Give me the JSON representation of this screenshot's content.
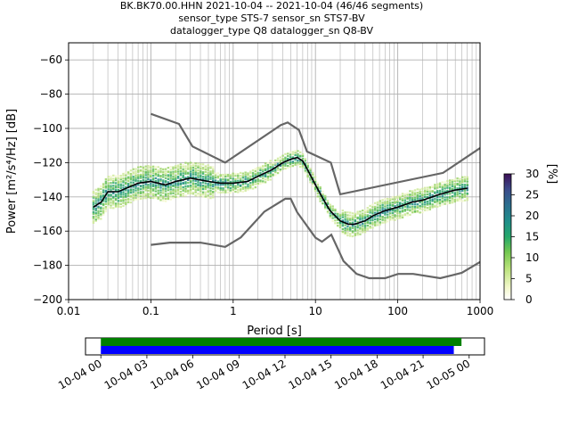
{
  "title_lines": [
    "BK.BK70.00.HHN   2021-10-04 -- 2021-10-04  (46/46 segments)",
    "sensor_type STS-7 sensor_sn STS7-BV",
    "datalogger_type Q8 datalogger_sn Q8-BV"
  ],
  "colorbar": {
    "label": "[%]",
    "ticks": [
      "0",
      "5",
      "10",
      "15",
      "20",
      "25",
      "30"
    ],
    "range": [
      0,
      30
    ]
  },
  "chart_data": [
    {
      "type": "line",
      "x_scale": "log",
      "xlabel": "Period [s]",
      "ylabel": "Power [m²/s⁴/Hz] [dB]",
      "xlim": [
        0.01,
        1000
      ],
      "ylim": [
        -200,
        -50
      ],
      "x_ticks": [
        "0.01",
        "0.1",
        "1",
        "10",
        "100",
        "1000"
      ],
      "y_ticks": [
        "−200",
        "−180",
        "−160",
        "−140",
        "−120",
        "−100",
        "−80",
        "−60"
      ],
      "grid": true,
      "series": [
        {
          "role": "mode",
          "color": "#000000",
          "x": [
            0.02,
            0.025,
            0.03,
            0.04,
            0.05,
            0.07,
            0.1,
            0.15,
            0.2,
            0.3,
            0.5,
            0.7,
            1,
            1.5,
            2,
            3,
            4,
            5,
            6,
            7,
            8,
            10,
            12,
            15,
            20,
            25,
            30,
            40,
            50,
            70,
            100,
            150,
            200,
            300,
            500,
            700
          ],
          "y": [
            -146,
            -143,
            -137,
            -137,
            -135,
            -132,
            -131,
            -133,
            -131,
            -129,
            -131,
            -132,
            -132,
            -131,
            -128,
            -124,
            -120,
            -118,
            -117,
            -119,
            -124,
            -133,
            -140,
            -148,
            -154,
            -156,
            -156,
            -154,
            -151,
            -148,
            -146,
            -143,
            -142,
            -139,
            -136,
            -135
          ]
        },
        {
          "role": "NHNM",
          "color": "#666666",
          "x": [
            0.1,
            0.22,
            0.32,
            0.8,
            3.8,
            4.6,
            6.3,
            7.9,
            15.4,
            20,
            354.8,
            1000
          ],
          "y": [
            -91.5,
            -97.4,
            -110.5,
            -120,
            -98,
            -96.5,
            -101,
            -113.5,
            -120,
            -138.5,
            -126,
            -111.5
          ]
        },
        {
          "role": "NLNM",
          "color": "#666666",
          "x": [
            0.1,
            0.17,
            0.4,
            0.8,
            1.24,
            2.4,
            4.3,
            5,
            6,
            10,
            12,
            15.6,
            21.9,
            31.6,
            45,
            70,
            101,
            154,
            328,
            600,
            1000
          ],
          "y": [
            -168,
            -166.7,
            -166.7,
            -169.2,
            -163.7,
            -148.6,
            -141.1,
            -141.1,
            -149,
            -163.8,
            -166.2,
            -162.1,
            -177.5,
            -185,
            -187.5,
            -187.5,
            -185,
            -185,
            -187.5,
            -184.4,
            -178
          ]
        }
      ]
    },
    {
      "type": "timeline",
      "x_ticks": [
        "10-04 00",
        "10-04 03",
        "10-04 06",
        "10-04 09",
        "10-04 12",
        "10-04 15",
        "10-04 18",
        "10-04 21",
        "10-05 00"
      ],
      "x_range_hours": [
        -1,
        25
      ],
      "series": [
        {
          "color": "#008000",
          "start_hour": 0,
          "end_hour": 23.5
        },
        {
          "color": "#0000ff",
          "start_hour": 0,
          "end_hour": 23.0
        }
      ]
    }
  ]
}
